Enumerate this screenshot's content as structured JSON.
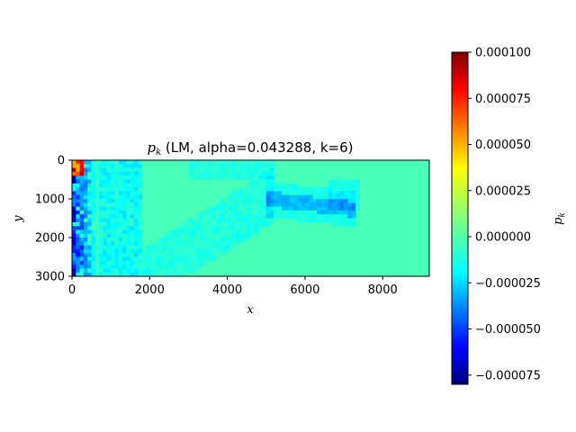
{
  "chart_data": {
    "type": "heatmap",
    "title": {
      "symbol": "p",
      "subscript": "k",
      "rest": " (LM, alpha=0.043288, k=6)"
    },
    "xlabel": "x",
    "ylabel": "y",
    "xlim": [
      0,
      9200
    ],
    "ylim": [
      3000,
      0
    ],
    "xticks": [
      0,
      2000,
      4000,
      6000,
      8000
    ],
    "xtick_labels": [
      "0",
      "2000",
      "4000",
      "6000",
      "8000"
    ],
    "yticks": [
      0,
      1000,
      2000,
      3000
    ],
    "ytick_labels": [
      "0",
      "1000",
      "2000",
      "3000"
    ],
    "colormap": "jet",
    "colorbar": {
      "label_symbol": "p",
      "label_subscript": "k",
      "range": [
        -8e-05,
        0.0001
      ],
      "ticks": [
        0.0001,
        7.5e-05,
        5e-05,
        2.5e-05,
        0.0,
        -2.5e-05,
        -5e-05,
        -7.5e-05
      ],
      "tick_labels": [
        "0.000100",
        "0.000075",
        "0.000050",
        "0.000025",
        "0.000000",
        "−0.000025",
        "−0.000050",
        "−0.000075"
      ]
    },
    "background_value": 0.0,
    "features": [
      {
        "x": [
          0,
          700
        ],
        "y": [
          0,
          3000
        ],
        "value": -4e-05
      },
      {
        "x": [
          0,
          300
        ],
        "y": [
          0,
          400
        ],
        "value": 9e-05
      },
      {
        "x": [
          5200,
          7300
        ],
        "y": [
          850,
          1350
        ],
        "value": -2.2e-05
      },
      {
        "x": [
          700,
          1800
        ],
        "y": [
          0,
          3000
        ],
        "value": -8e-06
      },
      {
        "x": [
          1800,
          5000
        ],
        "y": [
          1200,
          3000
        ],
        "value": -6e-06
      }
    ]
  }
}
